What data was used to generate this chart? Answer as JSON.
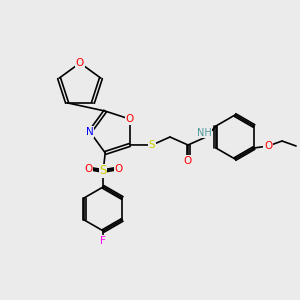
{
  "bg_color": "#ebebeb",
  "bond_color": "#000000",
  "atom_colors": {
    "O": "#ff0000",
    "N": "#0000ff",
    "S": "#cccc00",
    "F": "#ff00ff",
    "H": "#4d9999",
    "C": "#000000"
  },
  "font_size": 7.5,
  "lw": 1.2
}
